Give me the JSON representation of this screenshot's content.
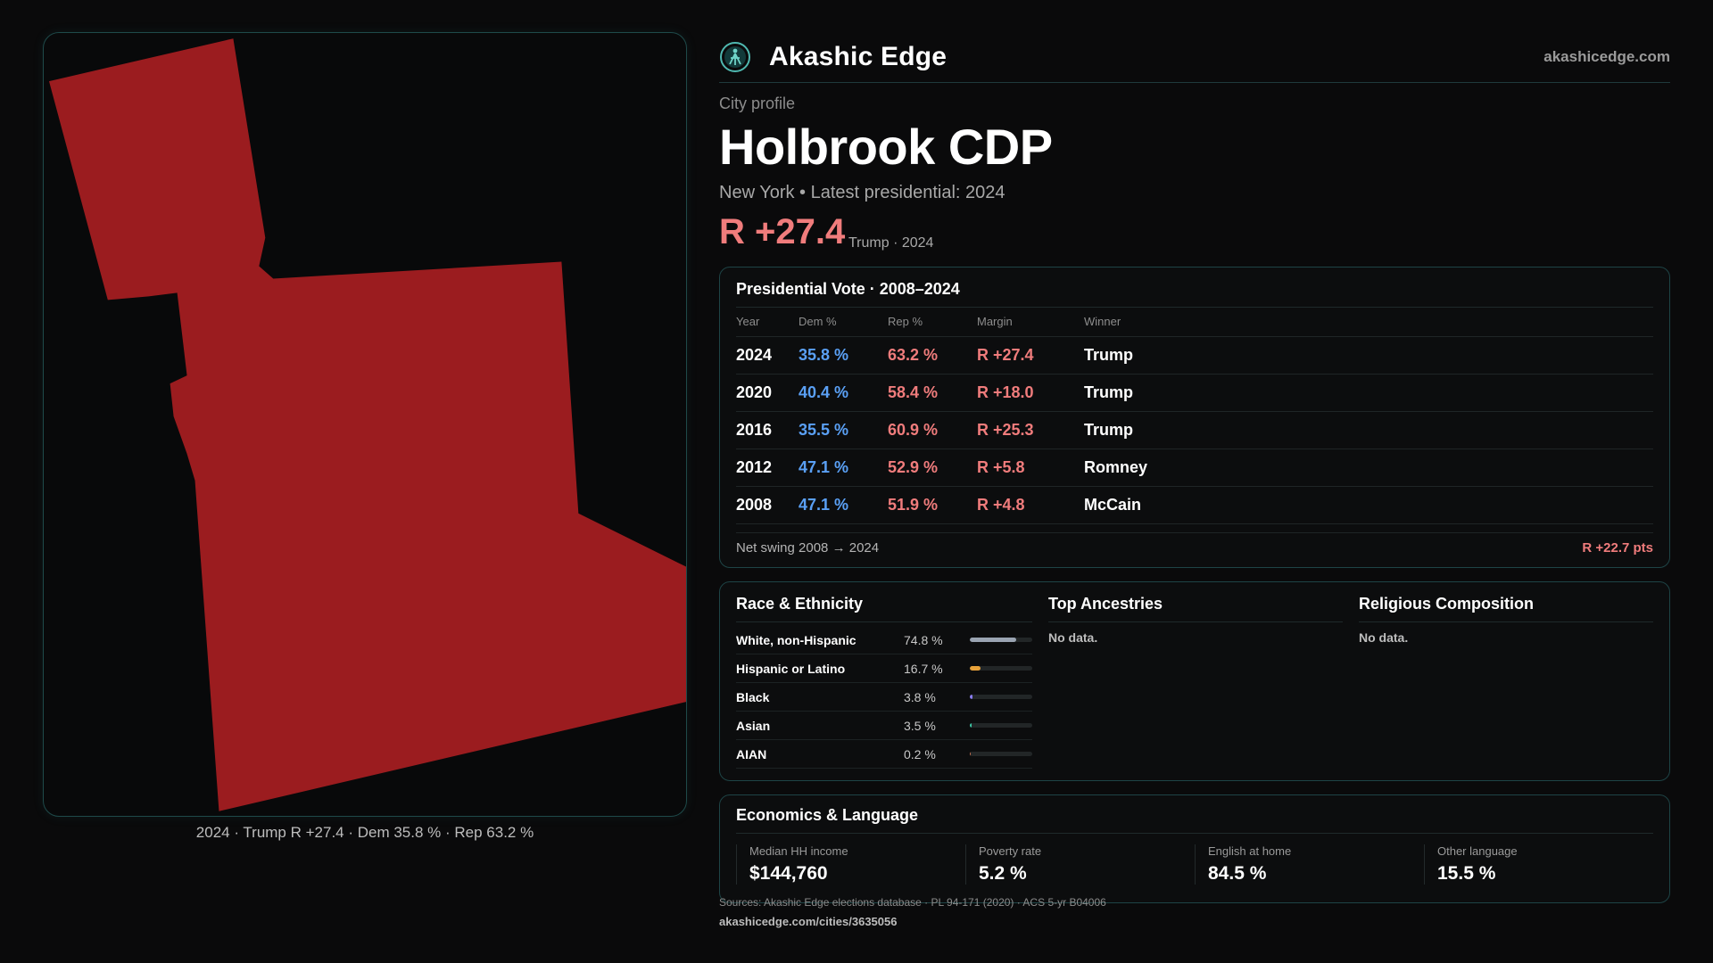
{
  "colors": {
    "background": "#0a0a0b",
    "accent_teal": "#1e4446",
    "dem_blue": "#5aa0f5",
    "rep_red": "#f07c7c",
    "map_fill": "#9b1c1f"
  },
  "header": {
    "logo_icon": "akashic-edge-logo-icon",
    "brand": "Akashic Edge",
    "site": "akashicedge.com"
  },
  "profile": {
    "kicker": "City profile",
    "title": "Holbrook CDP",
    "subtitle": "New York  • Latest presidential: 2024",
    "margin": "R +27.4",
    "margin_note": "Trump · 2024"
  },
  "map": {
    "caption": "2024 · Trump  R +27.4 · Dem 35.8 % · Rep 63.2 %"
  },
  "presidential": {
    "title": "Presidential Vote · 2008–2024",
    "columns": [
      "Year",
      "Dem %",
      "Rep %",
      "Margin",
      "Winner"
    ],
    "rows": [
      {
        "year": "2024",
        "dem": "35.8 %",
        "rep": "63.2 %",
        "margin": "R +27.4",
        "winner": "Trump"
      },
      {
        "year": "2020",
        "dem": "40.4 %",
        "rep": "58.4 %",
        "margin": "R +18.0",
        "winner": "Trump"
      },
      {
        "year": "2016",
        "dem": "35.5 %",
        "rep": "60.9 %",
        "margin": "R +25.3",
        "winner": "Trump"
      },
      {
        "year": "2012",
        "dem": "47.1 %",
        "rep": "52.9 %",
        "margin": "R +5.8",
        "winner": "Romney"
      },
      {
        "year": "2008",
        "dem": "47.1 %",
        "rep": "51.9 %",
        "margin": "R +4.8",
        "winner": "McCain"
      }
    ],
    "swing_label": "Net swing 2008 → 2024",
    "swing_value": "R +22.7 pts"
  },
  "race": {
    "title": "Race & Ethnicity",
    "rows": [
      {
        "name": "White, non-Hispanic",
        "value": "74.8 %",
        "fraction": 0.748,
        "color": "#9aa4b2"
      },
      {
        "name": "Hispanic or Latino",
        "value": "16.7 %",
        "fraction": 0.167,
        "color": "#e8a23a"
      },
      {
        "name": "Black",
        "value": "3.8 %",
        "fraction": 0.038,
        "color": "#8a7cf0"
      },
      {
        "name": "Asian",
        "value": "3.5 %",
        "fraction": 0.035,
        "color": "#3cc7a4"
      },
      {
        "name": "AIAN",
        "value": "0.2 %",
        "fraction": 0.002,
        "color": "#c07050"
      }
    ]
  },
  "ancestries": {
    "title": "Top Ancestries",
    "text": "No data."
  },
  "religion": {
    "title": "Religious Composition",
    "text": "No data."
  },
  "economics": {
    "title": "Economics & Language",
    "stats": [
      {
        "label": "Median HH income",
        "value": "$144,760"
      },
      {
        "label": "Poverty rate",
        "value": "5.2 %"
      },
      {
        "label": "English at home",
        "value": "84.5 %"
      },
      {
        "label": "Other language",
        "value": "15.5 %"
      }
    ]
  },
  "footer": {
    "sources": "Sources: Akashic Edge elections database · PL 94-171 (2020) · ACS 5-yr B04006",
    "url": "akashicedge.com/cities/3635056"
  }
}
